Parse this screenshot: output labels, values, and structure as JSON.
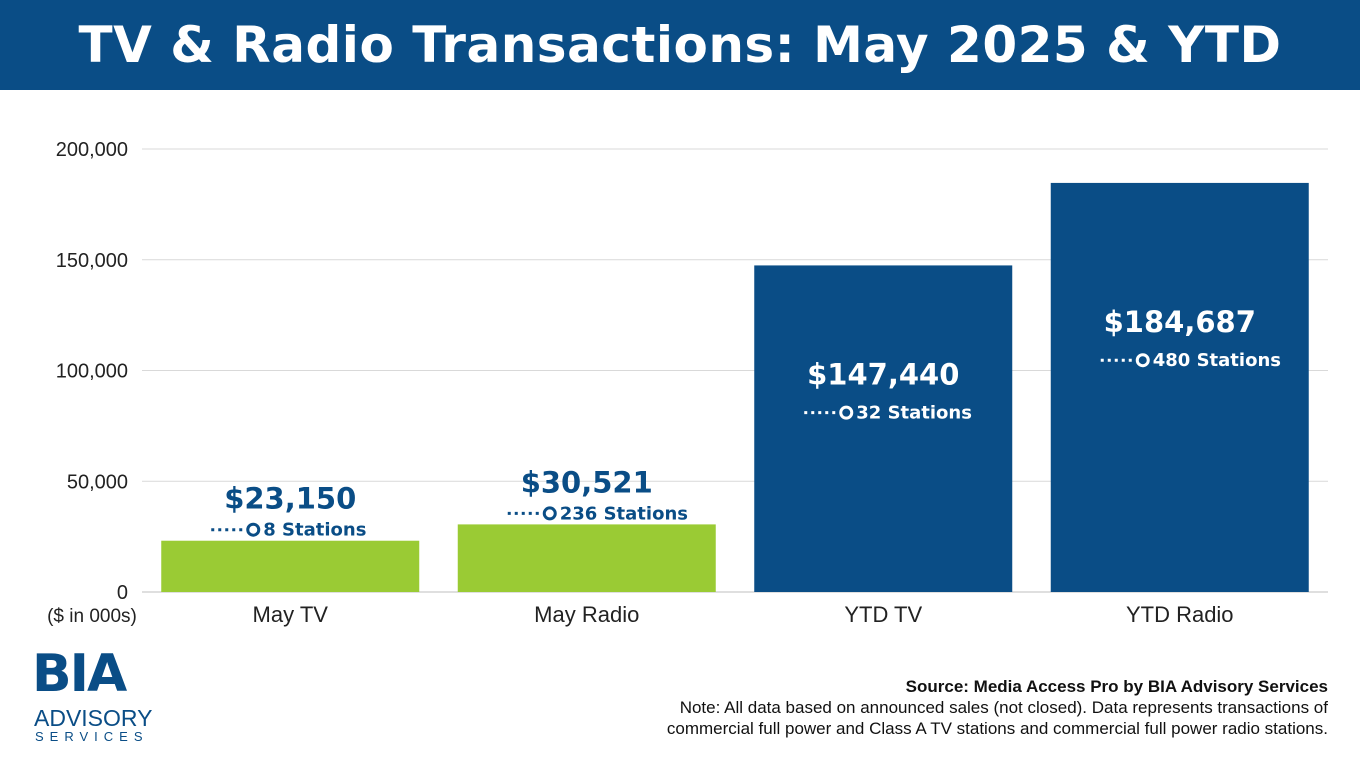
{
  "title": "TV & Radio Transactions: May 2025 & YTD",
  "colors": {
    "header_bg": "#0a4d86",
    "green": "#9acb34",
    "blue": "#0a4d86",
    "label_dark": "#0a4d86",
    "label_light": "#ffffff"
  },
  "chart_data": {
    "type": "bar",
    "title": "TV & Radio Transactions: May 2025 & YTD",
    "categories": [
      "May TV",
      "May Radio",
      "YTD TV",
      "YTD Radio"
    ],
    "values": [
      23150,
      30521,
      147440,
      184687
    ],
    "data_labels": [
      "$23,150",
      "$30,521",
      "$147,440",
      "$184,687"
    ],
    "stations": [
      8,
      236,
      32,
      480
    ],
    "station_labels": [
      "8 Stations",
      "236 Stations",
      "32 Stations",
      "480 Stations"
    ],
    "bar_colors": [
      "#9acb34",
      "#9acb34",
      "#0a4d86",
      "#0a4d86"
    ],
    "ylim": [
      0,
      200000
    ],
    "yticks": [
      0,
      50000,
      100000,
      150000,
      200000
    ],
    "ytick_labels": [
      "0",
      "50,000",
      "100,000",
      "150,000",
      "200,000"
    ],
    "unit_label": "($ in 000s)",
    "grid": true
  },
  "logo": {
    "main": "BIA",
    "line1": "ADVISORY",
    "line2": "SERVICES"
  },
  "source": {
    "title": "Source: Media Access Pro by BIA Advisory Services",
    "note_line1": "Note: All data based on announced sales (not closed).  Data represents transactions of",
    "note_line2": "commercial full power and Class A TV stations and commercial full power radio stations."
  }
}
